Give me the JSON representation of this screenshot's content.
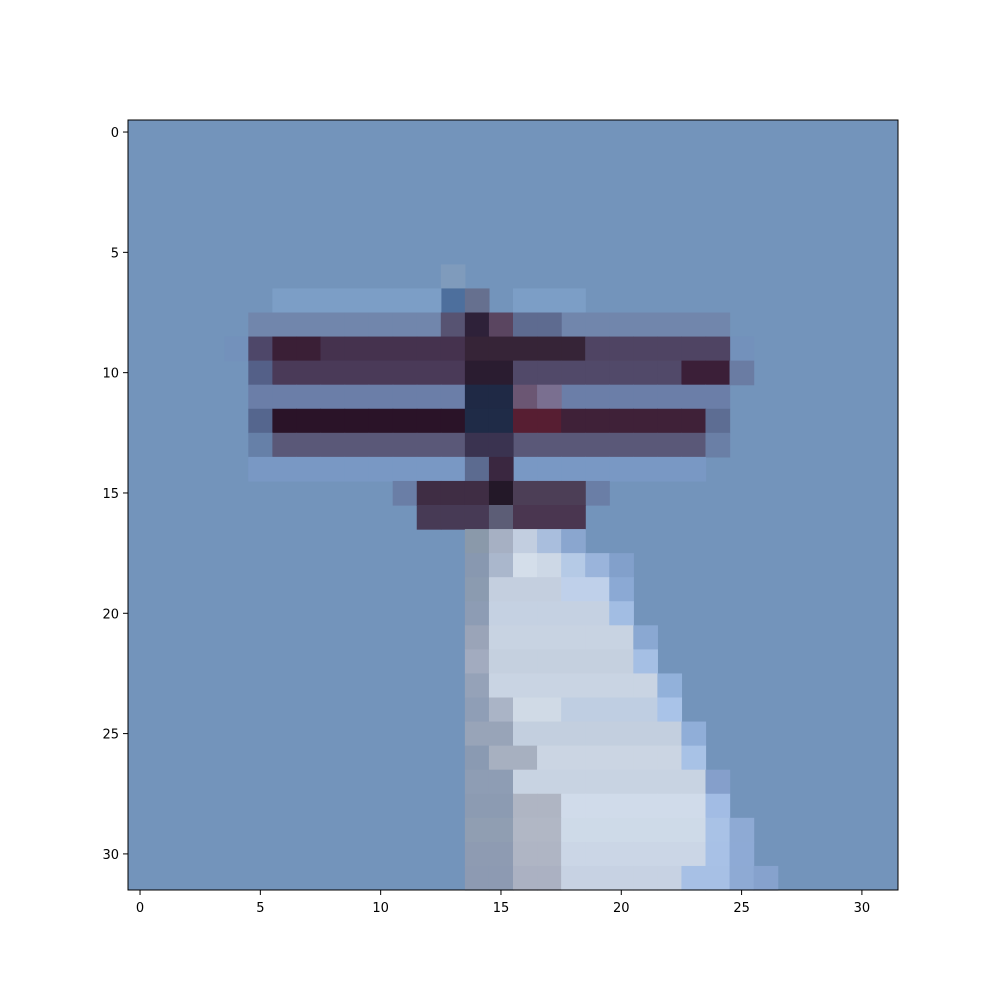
{
  "chart_data": {
    "type": "heatmap",
    "title": "",
    "xlabel": "",
    "ylabel": "",
    "xlim": [
      -0.5,
      31.5
    ],
    "ylim": [
      31.5,
      -0.5
    ],
    "x_ticks": [
      "0",
      "5",
      "10",
      "15",
      "20",
      "25",
      "30"
    ],
    "y_ticks": [
      "0",
      "5",
      "10",
      "15",
      "20",
      "25",
      "30"
    ],
    "grid": false,
    "legend": "none",
    "background_color": "#7394bb",
    "pixels": [
      {
        "row": 6,
        "cols": [
          13
        ],
        "color": "#7f9bbc"
      },
      {
        "row": 7,
        "cols": [
          13
        ],
        "color": "#4d6f9d"
      },
      {
        "row": 7,
        "cols": [
          14
        ],
        "color": "#66708f"
      },
      {
        "row": 7,
        "cols": [
          6,
          7,
          8,
          9,
          10,
          11,
          12,
          16,
          17,
          18
        ],
        "color": "#7c9ec6"
      },
      {
        "row": 8,
        "cols": [
          5,
          6,
          7,
          8,
          9,
          10,
          11,
          12,
          16,
          17,
          18,
          19,
          20,
          21,
          22,
          23,
          24
        ],
        "color": "#7186ac"
      },
      {
        "row": 8,
        "cols": [
          13
        ],
        "color": "#575372"
      },
      {
        "row": 8,
        "cols": [
          14
        ],
        "color": "#2e2139"
      },
      {
        "row": 8,
        "cols": [
          15
        ],
        "color": "#5a4560"
      },
      {
        "row": 8,
        "cols": [
          16,
          17
        ],
        "color": "#5e6b90"
      },
      {
        "row": 9,
        "cols": [
          4,
          25
        ],
        "color": "#7391bb"
      },
      {
        "row": 9,
        "cols": [
          5
        ],
        "color": "#4e4769"
      },
      {
        "row": 9,
        "cols": [
          6,
          7
        ],
        "color": "#3a1f36"
      },
      {
        "row": 9,
        "cols": [
          8,
          9,
          10,
          11,
          12,
          13
        ],
        "color": "#45324e"
      },
      {
        "row": 9,
        "cols": [
          14,
          15,
          16,
          17,
          18
        ],
        "color": "#362437"
      },
      {
        "row": 9,
        "cols": [
          19,
          20,
          21,
          22,
          23,
          24
        ],
        "color": "#4f4463"
      },
      {
        "row": 10,
        "cols": [
          5
        ],
        "color": "#546088"
      },
      {
        "row": 10,
        "cols": [
          6,
          7,
          8,
          9,
          10,
          11,
          12,
          13
        ],
        "color": "#4a3a58"
      },
      {
        "row": 10,
        "cols": [
          14,
          15
        ],
        "color": "#2a1c30"
      },
      {
        "row": 10,
        "cols": [
          16,
          17,
          18,
          19,
          20,
          21,
          22
        ],
        "color": "#514969"
      },
      {
        "row": 10,
        "cols": [
          23,
          24
        ],
        "color": "#3b1f38"
      },
      {
        "row": 10,
        "cols": [
          25
        ],
        "color": "#6a7ca3"
      },
      {
        "row": 11,
        "cols": [
          5,
          6,
          7,
          8,
          9,
          10,
          11,
          12,
          13,
          18,
          19,
          20,
          21,
          22,
          23,
          24
        ],
        "color": "#6b7ea8"
      },
      {
        "row": 11,
        "cols": [
          14,
          15
        ],
        "color": "#1f2945"
      },
      {
        "row": 11,
        "cols": [
          16
        ],
        "color": "#6b5673"
      },
      {
        "row": 11,
        "cols": [
          17
        ],
        "color": "#7a6f90"
      },
      {
        "row": 12,
        "cols": [
          5
        ],
        "color": "#55668e"
      },
      {
        "row": 12,
        "cols": [
          6,
          7,
          8,
          9,
          10,
          11,
          12,
          13
        ],
        "color": "#2a1328"
      },
      {
        "row": 12,
        "cols": [
          14,
          15
        ],
        "color": "#1f2b47"
      },
      {
        "row": 12,
        "cols": [
          16,
          17
        ],
        "color": "#571e32"
      },
      {
        "row": 12,
        "cols": [
          18,
          19,
          20,
          21,
          22,
          23
        ],
        "color": "#3f2138"
      },
      {
        "row": 12,
        "cols": [
          24
        ],
        "color": "#5d6d93"
      },
      {
        "row": 13,
        "cols": [
          5
        ],
        "color": "#6680a8"
      },
      {
        "row": 13,
        "cols": [
          6,
          7,
          8,
          9,
          10,
          11,
          12,
          13,
          16,
          17,
          18,
          19,
          20,
          21,
          22,
          23
        ],
        "color": "#5a5878"
      },
      {
        "row": 13,
        "cols": [
          14,
          15
        ],
        "color": "#3a3350"
      },
      {
        "row": 13,
        "cols": [
          24
        ],
        "color": "#6a7fa6"
      },
      {
        "row": 14,
        "cols": [
          5,
          6,
          7,
          8,
          9,
          10,
          11,
          12,
          13,
          16,
          17,
          18,
          19,
          20,
          21,
          22,
          23
        ],
        "color": "#7998c4"
      },
      {
        "row": 14,
        "cols": [
          14
        ],
        "color": "#5c6b90"
      },
      {
        "row": 14,
        "cols": [
          15
        ],
        "color": "#3a2740"
      },
      {
        "row": 15,
        "cols": [
          11,
          19
        ],
        "color": "#6a7ea6"
      },
      {
        "row": 15,
        "cols": [
          12,
          13,
          14
        ],
        "color": "#3f2d44"
      },
      {
        "row": 15,
        "cols": [
          15
        ],
        "color": "#231828"
      },
      {
        "row": 15,
        "cols": [
          16,
          17,
          18
        ],
        "color": "#4c3e56"
      },
      {
        "row": 16,
        "cols": [
          12,
          13,
          14
        ],
        "color": "#473a55"
      },
      {
        "row": 16,
        "cols": [
          15
        ],
        "color": "#5c5d76"
      },
      {
        "row": 16,
        "cols": [
          16,
          17,
          18
        ],
        "color": "#4a3650"
      },
      {
        "row": 17,
        "cols": [
          14
        ],
        "color": "#8a99aa"
      },
      {
        "row": 17,
        "cols": [
          15
        ],
        "color": "#a6b0c3"
      },
      {
        "row": 17,
        "cols": [
          16
        ],
        "color": "#c2cee0"
      },
      {
        "row": 17,
        "cols": [
          17
        ],
        "color": "#a9bedd"
      },
      {
        "row": 17,
        "cols": [
          18
        ],
        "color": "#8aa6cf"
      },
      {
        "row": 18,
        "cols": [
          14
        ],
        "color": "#8898b0"
      },
      {
        "row": 18,
        "cols": [
          15
        ],
        "color": "#aab7cc"
      },
      {
        "row": 18,
        "cols": [
          16
        ],
        "color": "#d4deea"
      },
      {
        "row": 18,
        "cols": [
          17
        ],
        "color": "#cdd8e6"
      },
      {
        "row": 18,
        "cols": [
          18
        ],
        "color": "#b5cae6"
      },
      {
        "row": 18,
        "cols": [
          19
        ],
        "color": "#9ab4db"
      },
      {
        "row": 18,
        "cols": [
          20
        ],
        "color": "#82a0cb"
      },
      {
        "row": 19,
        "cols": [
          14
        ],
        "color": "#8b9bb0"
      },
      {
        "row": 19,
        "cols": [
          15,
          16,
          17
        ],
        "color": "#c4cfdf"
      },
      {
        "row": 19,
        "cols": [
          18,
          19
        ],
        "color": "#bfd0ea"
      },
      {
        "row": 19,
        "cols": [
          20
        ],
        "color": "#8ba9d4"
      },
      {
        "row": 20,
        "cols": [
          14
        ],
        "color": "#8d9cb4"
      },
      {
        "row": 20,
        "cols": [
          15,
          16,
          17,
          18,
          19
        ],
        "color": "#c5d1e2"
      },
      {
        "row": 20,
        "cols": [
          20
        ],
        "color": "#a2bde3"
      },
      {
        "row": 21,
        "cols": [
          14
        ],
        "color": "#9aa4b8"
      },
      {
        "row": 21,
        "cols": [
          15,
          16,
          17,
          18,
          19,
          20
        ],
        "color": "#c8d3e2"
      },
      {
        "row": 21,
        "cols": [
          21
        ],
        "color": "#8aa8d2"
      },
      {
        "row": 22,
        "cols": [
          14
        ],
        "color": "#a2abbf"
      },
      {
        "row": 22,
        "cols": [
          15,
          16,
          17,
          18,
          19,
          20
        ],
        "color": "#c5d0df"
      },
      {
        "row": 22,
        "cols": [
          21
        ],
        "color": "#a5bfe4"
      },
      {
        "row": 23,
        "cols": [
          14
        ],
        "color": "#95a2b8"
      },
      {
        "row": 23,
        "cols": [
          15,
          16,
          17,
          18,
          19,
          20,
          21
        ],
        "color": "#c9d4e3"
      },
      {
        "row": 23,
        "cols": [
          22
        ],
        "color": "#92b1da"
      },
      {
        "row": 24,
        "cols": [
          14
        ],
        "color": "#8f9eb6"
      },
      {
        "row": 24,
        "cols": [
          15
        ],
        "color": "#aab4c6"
      },
      {
        "row": 24,
        "cols": [
          16,
          17
        ],
        "color": "#d0dae6"
      },
      {
        "row": 24,
        "cols": [
          18,
          19,
          20,
          21
        ],
        "color": "#bfcee2"
      },
      {
        "row": 24,
        "cols": [
          22
        ],
        "color": "#a9c3e8"
      },
      {
        "row": 25,
        "cols": [
          14,
          15
        ],
        "color": "#98a4b8"
      },
      {
        "row": 25,
        "cols": [
          16,
          17,
          18,
          19,
          20,
          21,
          22
        ],
        "color": "#c3cfdf"
      },
      {
        "row": 25,
        "cols": [
          23
        ],
        "color": "#90aed8"
      },
      {
        "row": 26,
        "cols": [
          14
        ],
        "color": "#8a9ab2"
      },
      {
        "row": 26,
        "cols": [
          15,
          16
        ],
        "color": "#a7b0c0"
      },
      {
        "row": 26,
        "cols": [
          17,
          18,
          19,
          20,
          21,
          22
        ],
        "color": "#cbd5e3"
      },
      {
        "row": 26,
        "cols": [
          23
        ],
        "color": "#a8c2e6"
      },
      {
        "row": 27,
        "cols": [
          14,
          15
        ],
        "color": "#8e9db4"
      },
      {
        "row": 27,
        "cols": [
          16,
          17,
          18,
          19,
          20,
          21,
          22,
          23
        ],
        "color": "#c8d3e2"
      },
      {
        "row": 27,
        "cols": [
          24
        ],
        "color": "#859fcb"
      },
      {
        "row": 28,
        "cols": [
          14,
          15
        ],
        "color": "#8c9bb2"
      },
      {
        "row": 28,
        "cols": [
          16,
          17
        ],
        "color": "#afb5c3"
      },
      {
        "row": 28,
        "cols": [
          18,
          19,
          20,
          21,
          22,
          23
        ],
        "color": "#d0dbea"
      },
      {
        "row": 28,
        "cols": [
          24
        ],
        "color": "#a2bce4"
      },
      {
        "row": 29,
        "cols": [
          14,
          15
        ],
        "color": "#909eb2"
      },
      {
        "row": 29,
        "cols": [
          16,
          17
        ],
        "color": "#b1b7c5"
      },
      {
        "row": 29,
        "cols": [
          18,
          19,
          20,
          21,
          22,
          23
        ],
        "color": "#cedae8"
      },
      {
        "row": 29,
        "cols": [
          24
        ],
        "color": "#a9c2e6"
      },
      {
        "row": 29,
        "cols": [
          25
        ],
        "color": "#8eaad4"
      },
      {
        "row": 30,
        "cols": [
          14,
          15
        ],
        "color": "#8e9bb2"
      },
      {
        "row": 30,
        "cols": [
          16,
          17
        ],
        "color": "#afb5c4"
      },
      {
        "row": 30,
        "cols": [
          18,
          19,
          20,
          21,
          22,
          23
        ],
        "color": "#cbd6e6"
      },
      {
        "row": 30,
        "cols": [
          24
        ],
        "color": "#a8c1e6"
      },
      {
        "row": 30,
        "cols": [
          25
        ],
        "color": "#8eaad5"
      },
      {
        "row": 31,
        "cols": [
          14,
          15
        ],
        "color": "#8d9ab2"
      },
      {
        "row": 31,
        "cols": [
          16,
          17
        ],
        "color": "#abb1c2"
      },
      {
        "row": 31,
        "cols": [
          18,
          19,
          20,
          21,
          22
        ],
        "color": "#c7d2e3"
      },
      {
        "row": 31,
        "cols": [
          23,
          24
        ],
        "color": "#a7c0e5"
      },
      {
        "row": 31,
        "cols": [
          25
        ],
        "color": "#8eaad4"
      },
      {
        "row": 31,
        "cols": [
          26
        ],
        "color": "#86a2cd"
      }
    ]
  }
}
